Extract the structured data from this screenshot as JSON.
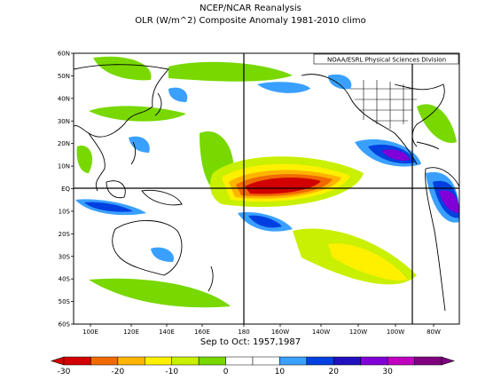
{
  "header": {
    "title": "NCEP/NCAR Reanalysis",
    "subtitle": "OLR (W/m^2) Composite Anomaly 1981-2010 climo"
  },
  "credit": "NOAA/ESRL Physical Sciences Division",
  "period_label": "Sep to Oct: 1957,1987",
  "map": {
    "lon_labels": [
      "100E",
      "120E",
      "140E",
      "160E",
      "180",
      "160W",
      "140W",
      "120W",
      "100W",
      "80W"
    ],
    "lat_labels": [
      "60N",
      "50N",
      "40N",
      "30N",
      "20N",
      "10N",
      "EQ",
      "10S",
      "20S",
      "30S",
      "40S",
      "50S",
      "60S"
    ],
    "reference_lines": [
      "180",
      "80W",
      "EQ"
    ]
  },
  "colorbar": {
    "labels": [
      "-30",
      "-20",
      "-10",
      "0",
      "10",
      "20",
      "30"
    ],
    "colors": [
      "#d20000",
      "#f06a00",
      "#ffb400",
      "#fff000",
      "#c8f000",
      "#78d800",
      "#ffffff",
      "#ffffff",
      "#3aa0ff",
      "#0040e0",
      "#2010c0",
      "#8000d8",
      "#c000c0",
      "#800080"
    ]
  },
  "anomaly_regions": [
    {
      "name": "central-pacific-negative",
      "level": -30
    },
    {
      "name": "south-pacific-negative",
      "level": -10
    },
    {
      "name": "caribbean-positive",
      "level": 25
    },
    {
      "name": "south-america-positive",
      "level": 25
    },
    {
      "name": "indonesia-positive",
      "level": 10
    }
  ]
}
